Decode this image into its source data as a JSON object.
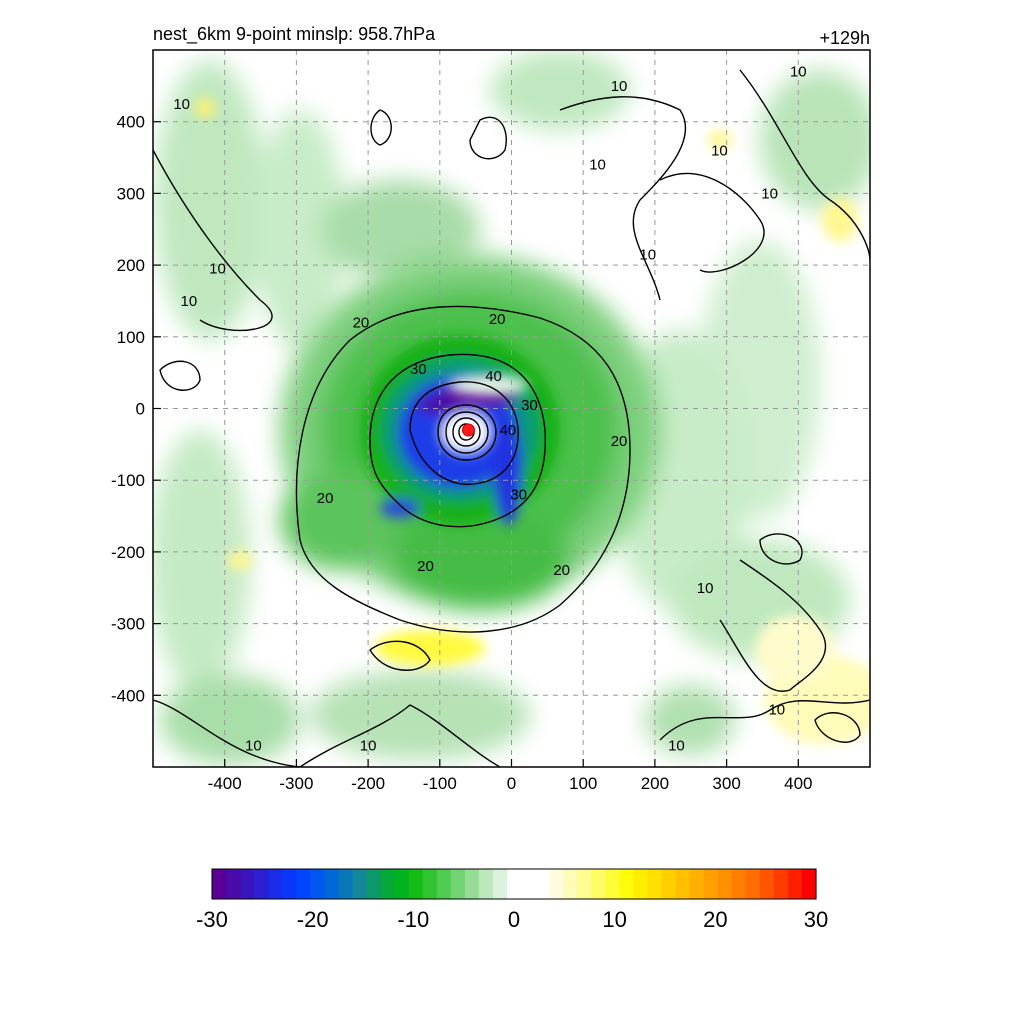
{
  "chart_data": {
    "type": "heatmap",
    "title": "nest_6km  9-point minslp: 958.7hPa",
    "forecast_hour_label": "+129h",
    "xlabel": "",
    "ylabel": "",
    "xlim": [
      -500,
      500
    ],
    "ylim": [
      -500,
      500
    ],
    "x_ticks": [
      -400,
      -300,
      -200,
      -100,
      0,
      100,
      200,
      300,
      400
    ],
    "y_ticks": [
      400,
      300,
      200,
      100,
      0,
      -100,
      -200,
      -300,
      -400
    ],
    "grid": true,
    "storm_center": {
      "x": -60,
      "y": -30
    },
    "colorbar": {
      "range": [
        -30,
        30
      ],
      "ticks": [
        -30,
        -20,
        -10,
        0,
        10,
        20,
        30
      ],
      "colors": [
        "#5a0094",
        "#4a0aa8",
        "#3a14bc",
        "#2a20d2",
        "#1a2ce8",
        "#0a36fa",
        "#0046ff",
        "#0058f0",
        "#0068d8",
        "#0a78b8",
        "#148898",
        "#0c9868",
        "#06a838",
        "#00b41e",
        "#16bc16",
        "#30c430",
        "#50cc50",
        "#72d472",
        "#96dc96",
        "#bce8bc",
        "#dcf2dc",
        "#ffffff",
        "#ffffff",
        "#ffffff",
        "#fffce0",
        "#fffcb8",
        "#fffc90",
        "#fffc64",
        "#fffc38",
        "#fffc0a",
        "#ffee00",
        "#ffe000",
        "#ffd000",
        "#ffc000",
        "#ffb000",
        "#ffa000",
        "#ff9000",
        "#ff7e00",
        "#ff6c00",
        "#ff5400",
        "#ff3c00",
        "#ff2000",
        "#ff0000"
      ]
    },
    "contours": [
      {
        "level": 10,
        "label": "10"
      },
      {
        "level": 20,
        "label": "20"
      },
      {
        "level": 30,
        "label": "30"
      },
      {
        "level": 40,
        "label": "40"
      }
    ],
    "contour_labels": [
      {
        "x": 150,
        "y": 450,
        "text": "10"
      },
      {
        "x": 400,
        "y": 470,
        "text": "10"
      },
      {
        "x": 290,
        "y": 360,
        "text": "10"
      },
      {
        "x": 120,
        "y": 340,
        "text": "10"
      },
      {
        "x": 360,
        "y": 300,
        "text": "10"
      },
      {
        "x": 190,
        "y": 215,
        "text": "10"
      },
      {
        "x": -410,
        "y": 195,
        "text": "10"
      },
      {
        "x": -460,
        "y": 425,
        "text": "10"
      },
      {
        "x": -450,
        "y": 150,
        "text": "10"
      },
      {
        "x": 270,
        "y": -250,
        "text": "10"
      },
      {
        "x": 370,
        "y": -420,
        "text": "10"
      },
      {
        "x": 230,
        "y": -470,
        "text": "10"
      },
      {
        "x": -360,
        "y": -470,
        "text": "10"
      },
      {
        "x": -200,
        "y": -470,
        "text": "10"
      },
      {
        "x": -210,
        "y": 120,
        "text": "20"
      },
      {
        "x": -20,
        "y": 125,
        "text": "20"
      },
      {
        "x": 150,
        "y": -45,
        "text": "20"
      },
      {
        "x": -260,
        "y": -125,
        "text": "20"
      },
      {
        "x": -120,
        "y": -220,
        "text": "20"
      },
      {
        "x": 70,
        "y": -225,
        "text": "20"
      },
      {
        "x": -130,
        "y": 55,
        "text": "30"
      },
      {
        "x": 25,
        "y": 5,
        "text": "30"
      },
      {
        "x": 10,
        "y": -120,
        "text": "30"
      },
      {
        "x": -25,
        "y": 45,
        "text": "40"
      },
      {
        "x": -5,
        "y": -30,
        "text": "40"
      }
    ]
  }
}
